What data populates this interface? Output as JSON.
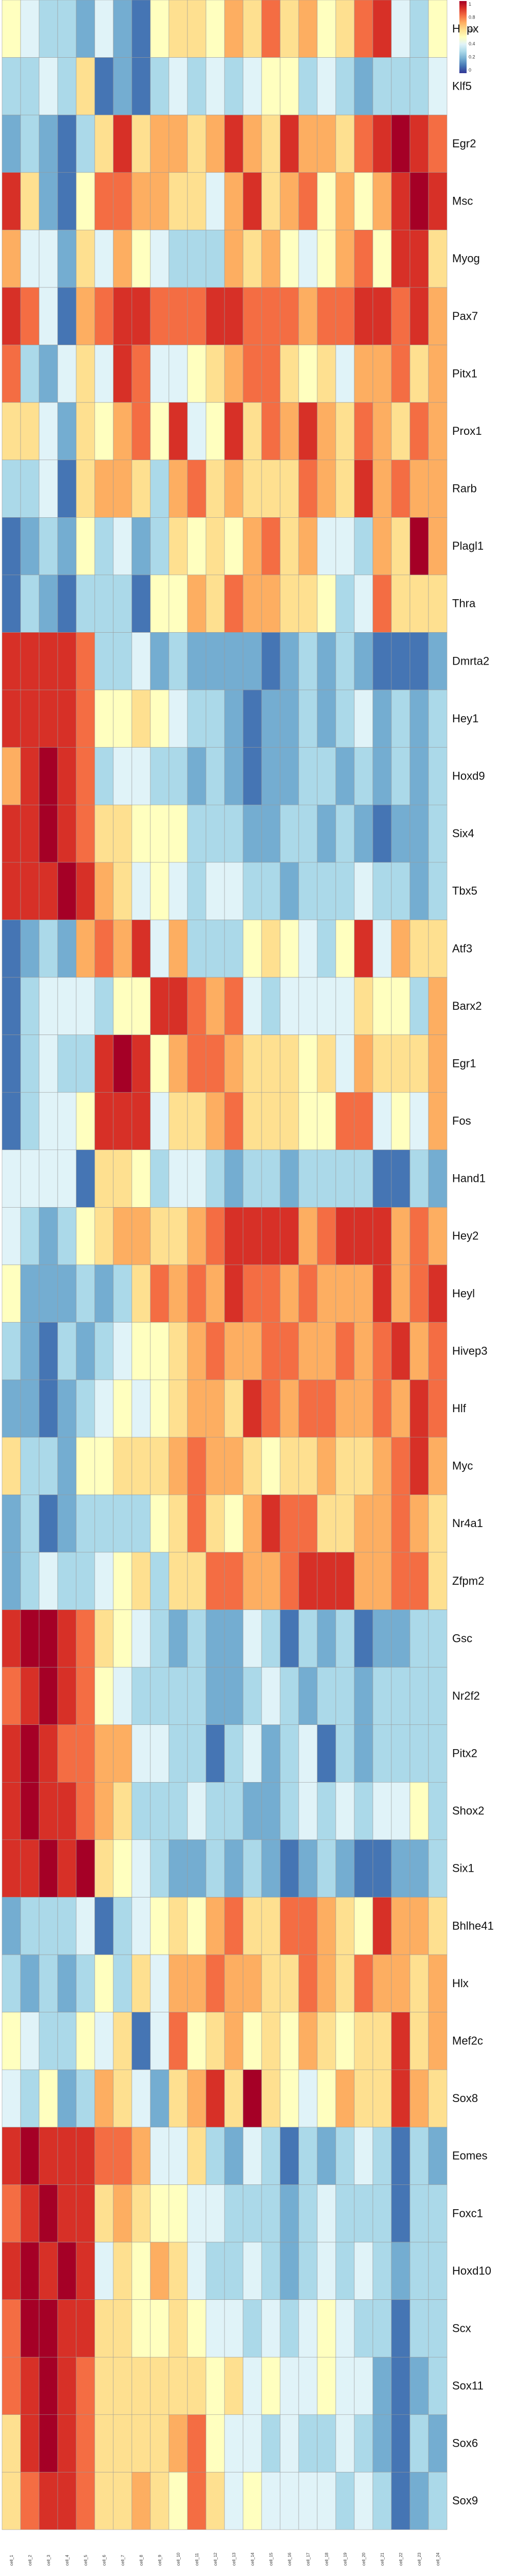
{
  "chart_data": {
    "type": "heatmap",
    "title": "",
    "xlabel": "",
    "ylabel": "",
    "rows": [
      "Hopx",
      "Klf5",
      "Egr2",
      "Msc",
      "Myog",
      "Pax7",
      "Pitx1",
      "Prox1",
      "Rarb",
      "Plagl1",
      "Thra",
      "Dmrta2",
      "Hey1",
      "Hoxd9",
      "Six4",
      "Tbx5",
      "Atf3",
      "Barx2",
      "Egr1",
      "Fos",
      "Hand1",
      "Hey2",
      "Heyl",
      "Hivep3",
      "Hlf",
      "Myc",
      "Nr4a1",
      "Zfpm2",
      "Gsc",
      "Nr2f2",
      "Pitx2",
      "Shox2",
      "Six1",
      "Bhlhe41",
      "Hlx",
      "Mef2c",
      "Sox8",
      "Eomes",
      "Foxc1",
      "Hoxd10",
      "Scx",
      "Sox11",
      "Sox6",
      "Sox9"
    ],
    "columns": [
      "c1",
      "c2",
      "c3",
      "c4",
      "c5",
      "c6",
      "c7",
      "c8",
      "c9",
      "c10",
      "c11",
      "c12",
      "c13",
      "c14",
      "c15",
      "c16",
      "c17",
      "c18",
      "c19",
      "c20",
      "c21",
      "c22",
      "c23",
      "c24"
    ],
    "column_label_text": "cell",
    "legend": {
      "ticks": [
        "1",
        "0.8",
        "0.6",
        "0.4",
        "0.2",
        "0"
      ],
      "colors": [
        "#a50026",
        "#d73027",
        "#f46d43",
        "#fdae61",
        "#fee090",
        "#ffffbf",
        "#e0f3f8",
        "#abd9e9",
        "#74add1",
        "#4575b4",
        "#313695"
      ]
    },
    "values": [
      [
        0.5,
        0.4,
        0.3,
        0.3,
        0.2,
        0.4,
        0.2,
        0.1,
        0.5,
        0.6,
        0.6,
        0.5,
        0.7,
        0.6,
        0.8,
        0.6,
        0.7,
        0.5,
        0.6,
        0.8,
        0.9,
        0.4,
        0.3,
        0.5
      ],
      [
        0.3,
        0.3,
        0.4,
        0.3,
        0.6,
        0.1,
        0.2,
        0.1,
        0.3,
        0.4,
        0.3,
        0.4,
        0.3,
        0.4,
        0.5,
        0.5,
        0.3,
        0.4,
        0.3,
        0.2,
        0.3,
        0.3,
        0.3,
        0.4
      ],
      [
        0.2,
        0.3,
        0.2,
        0.1,
        0.3,
        0.6,
        0.9,
        0.6,
        0.7,
        0.7,
        0.6,
        0.7,
        0.9,
        0.7,
        0.6,
        0.9,
        0.7,
        0.7,
        0.6,
        0.8,
        0.9,
        1.0,
        0.9,
        0.8
      ],
      [
        0.9,
        0.6,
        0.2,
        0.1,
        0.5,
        0.8,
        0.8,
        0.7,
        0.7,
        0.6,
        0.6,
        0.4,
        0.7,
        0.9,
        0.6,
        0.7,
        0.8,
        0.5,
        0.7,
        0.5,
        0.7,
        0.9,
        1.0,
        0.9
      ],
      [
        0.7,
        0.4,
        0.4,
        0.2,
        0.6,
        0.4,
        0.7,
        0.5,
        0.4,
        0.3,
        0.3,
        0.3,
        0.7,
        0.6,
        0.7,
        0.5,
        0.4,
        0.5,
        0.7,
        0.8,
        0.5,
        0.9,
        0.9,
        0.6
      ],
      [
        0.9,
        0.8,
        0.4,
        0.1,
        0.7,
        0.8,
        0.9,
        0.9,
        0.8,
        0.8,
        0.8,
        0.9,
        0.9,
        0.8,
        0.8,
        0.8,
        0.7,
        0.8,
        0.8,
        0.9,
        0.9,
        0.8,
        0.9,
        0.7
      ],
      [
        0.8,
        0.3,
        0.2,
        0.4,
        0.6,
        0.4,
        0.9,
        0.8,
        0.4,
        0.4,
        0.5,
        0.6,
        0.7,
        0.8,
        0.8,
        0.6,
        0.5,
        0.6,
        0.4,
        0.7,
        0.7,
        0.8,
        0.6,
        0.7
      ],
      [
        0.6,
        0.6,
        0.4,
        0.2,
        0.6,
        0.5,
        0.7,
        0.8,
        0.5,
        0.9,
        0.4,
        0.5,
        0.9,
        0.6,
        0.8,
        0.7,
        0.9,
        0.7,
        0.6,
        0.8,
        0.7,
        0.6,
        0.8,
        0.7
      ],
      [
        0.3,
        0.3,
        0.4,
        0.1,
        0.6,
        0.7,
        0.7,
        0.6,
        0.3,
        0.7,
        0.8,
        0.6,
        0.7,
        0.6,
        0.6,
        0.6,
        0.8,
        0.7,
        0.6,
        0.9,
        0.7,
        0.8,
        0.7,
        0.7
      ],
      [
        0.1,
        0.2,
        0.3,
        0.2,
        0.5,
        0.3,
        0.4,
        0.2,
        0.3,
        0.6,
        0.5,
        0.6,
        0.5,
        0.7,
        0.8,
        0.6,
        0.7,
        0.4,
        0.4,
        0.3,
        0.7,
        0.6,
        1.0,
        0.7
      ],
      [
        0.1,
        0.3,
        0.2,
        0.1,
        0.3,
        0.3,
        0.3,
        0.1,
        0.5,
        0.5,
        0.7,
        0.6,
        0.8,
        0.7,
        0.7,
        0.6,
        0.6,
        0.5,
        0.3,
        0.4,
        0.8,
        0.6,
        0.6,
        0.6
      ],
      [
        0.9,
        0.9,
        0.9,
        0.9,
        0.8,
        0.3,
        0.3,
        0.4,
        0.2,
        0.3,
        0.2,
        0.2,
        0.2,
        0.2,
        0.1,
        0.2,
        0.3,
        0.2,
        0.3,
        0.2,
        0.1,
        0.1,
        0.1,
        0.2
      ],
      [
        0.9,
        0.9,
        0.9,
        0.9,
        0.8,
        0.5,
        0.5,
        0.6,
        0.5,
        0.4,
        0.3,
        0.3,
        0.2,
        0.1,
        0.2,
        0.2,
        0.3,
        0.2,
        0.3,
        0.4,
        0.2,
        0.3,
        0.2,
        0.3
      ],
      [
        0.7,
        0.9,
        1.0,
        0.9,
        0.8,
        0.3,
        0.4,
        0.4,
        0.3,
        0.3,
        0.2,
        0.3,
        0.2,
        0.1,
        0.2,
        0.2,
        0.3,
        0.3,
        0.2,
        0.3,
        0.2,
        0.3,
        0.2,
        0.3
      ],
      [
        0.9,
        0.9,
        1.0,
        0.9,
        0.8,
        0.6,
        0.6,
        0.5,
        0.5,
        0.5,
        0.3,
        0.3,
        0.3,
        0.2,
        0.2,
        0.3,
        0.3,
        0.2,
        0.3,
        0.2,
        0.1,
        0.2,
        0.2,
        0.3
      ],
      [
        0.9,
        0.9,
        0.9,
        1.0,
        0.9,
        0.7,
        0.6,
        0.4,
        0.5,
        0.4,
        0.3,
        0.4,
        0.4,
        0.3,
        0.3,
        0.2,
        0.3,
        0.3,
        0.3,
        0.4,
        0.3,
        0.3,
        0.2,
        0.3
      ],
      [
        0.1,
        0.2,
        0.3,
        0.2,
        0.7,
        0.8,
        0.7,
        0.9,
        0.4,
        0.7,
        0.3,
        0.3,
        0.3,
        0.5,
        0.6,
        0.5,
        0.4,
        0.3,
        0.5,
        0.9,
        0.4,
        0.7,
        0.6,
        0.6
      ],
      [
        0.1,
        0.3,
        0.4,
        0.4,
        0.4,
        0.3,
        0.5,
        0.5,
        0.9,
        0.9,
        0.8,
        0.7,
        0.8,
        0.4,
        0.3,
        0.4,
        0.4,
        0.4,
        0.4,
        0.6,
        0.5,
        0.5,
        0.3,
        0.7
      ],
      [
        0.1,
        0.3,
        0.4,
        0.3,
        0.3,
        0.9,
        1.0,
        0.9,
        0.5,
        0.7,
        0.8,
        0.8,
        0.7,
        0.6,
        0.6,
        0.6,
        0.5,
        0.6,
        0.4,
        0.7,
        0.6,
        0.6,
        0.6,
        0.7
      ],
      [
        0.1,
        0.3,
        0.4,
        0.4,
        0.5,
        0.9,
        0.9,
        0.9,
        0.4,
        0.6,
        0.6,
        0.7,
        0.8,
        0.6,
        0.6,
        0.6,
        0.5,
        0.5,
        0.8,
        0.8,
        0.4,
        0.5,
        0.4,
        0.7
      ],
      [
        0.4,
        0.4,
        0.4,
        0.4,
        0.1,
        0.6,
        0.6,
        0.5,
        0.3,
        0.4,
        0.4,
        0.3,
        0.2,
        0.3,
        0.3,
        0.2,
        0.3,
        0.3,
        0.3,
        0.3,
        0.1,
        0.1,
        0.3,
        0.2
      ],
      [
        0.4,
        0.3,
        0.2,
        0.3,
        0.5,
        0.6,
        0.7,
        0.7,
        0.6,
        0.6,
        0.7,
        0.8,
        0.9,
        0.9,
        0.9,
        0.9,
        0.7,
        0.8,
        0.9,
        0.9,
        0.9,
        0.7,
        0.8,
        0.7
      ],
      [
        0.5,
        0.2,
        0.2,
        0.2,
        0.3,
        0.2,
        0.3,
        0.6,
        0.8,
        0.7,
        0.8,
        0.7,
        0.9,
        0.8,
        0.8,
        0.7,
        0.8,
        0.7,
        0.7,
        0.7,
        0.9,
        0.7,
        0.8,
        0.9
      ],
      [
        0.3,
        0.2,
        0.1,
        0.3,
        0.2,
        0.3,
        0.4,
        0.5,
        0.5,
        0.6,
        0.7,
        0.8,
        0.7,
        0.7,
        0.8,
        0.8,
        0.7,
        0.7,
        0.8,
        0.7,
        0.8,
        0.9,
        0.7,
        0.8
      ],
      [
        0.2,
        0.2,
        0.1,
        0.2,
        0.3,
        0.4,
        0.5,
        0.4,
        0.5,
        0.6,
        0.7,
        0.7,
        0.6,
        0.9,
        0.8,
        0.7,
        0.8,
        0.8,
        0.7,
        0.7,
        0.8,
        0.7,
        0.9,
        0.8
      ],
      [
        0.6,
        0.3,
        0.3,
        0.2,
        0.5,
        0.5,
        0.6,
        0.6,
        0.6,
        0.7,
        0.8,
        0.7,
        0.7,
        0.6,
        0.5,
        0.6,
        0.6,
        0.7,
        0.6,
        0.6,
        0.7,
        0.8,
        0.9,
        0.7
      ],
      [
        0.2,
        0.3,
        0.1,
        0.2,
        0.3,
        0.3,
        0.3,
        0.3,
        0.5,
        0.6,
        0.8,
        0.6,
        0.5,
        0.7,
        0.9,
        0.8,
        0.8,
        0.6,
        0.6,
        0.7,
        0.7,
        0.8,
        0.7,
        0.6
      ],
      [
        0.2,
        0.3,
        0.4,
        0.3,
        0.3,
        0.4,
        0.5,
        0.6,
        0.3,
        0.6,
        0.6,
        0.8,
        0.8,
        0.7,
        0.7,
        0.8,
        0.9,
        0.9,
        0.9,
        0.7,
        0.7,
        0.8,
        0.8,
        0.6
      ],
      [
        0.9,
        1.0,
        1.0,
        0.9,
        0.8,
        0.6,
        0.5,
        0.4,
        0.3,
        0.2,
        0.3,
        0.2,
        0.2,
        0.4,
        0.3,
        0.1,
        0.3,
        0.2,
        0.3,
        0.1,
        0.2,
        0.2,
        0.3,
        0.3
      ],
      [
        0.8,
        0.9,
        1.0,
        0.9,
        0.8,
        0.5,
        0.4,
        0.3,
        0.3,
        0.3,
        0.3,
        0.2,
        0.2,
        0.3,
        0.4,
        0.3,
        0.2,
        0.3,
        0.3,
        0.2,
        0.3,
        0.3,
        0.3,
        0.3
      ],
      [
        0.9,
        1.0,
        0.9,
        0.8,
        0.8,
        0.7,
        0.7,
        0.4,
        0.4,
        0.3,
        0.3,
        0.1,
        0.3,
        0.4,
        0.2,
        0.3,
        0.4,
        0.1,
        0.3,
        0.2,
        0.3,
        0.3,
        0.3,
        0.3
      ],
      [
        0.9,
        1.0,
        0.9,
        0.9,
        0.8,
        0.7,
        0.6,
        0.3,
        0.3,
        0.3,
        0.4,
        0.3,
        0.3,
        0.2,
        0.2,
        0.3,
        0.4,
        0.3,
        0.4,
        0.3,
        0.4,
        0.4,
        0.5,
        0.3
      ],
      [
        0.9,
        0.9,
        1.0,
        0.9,
        1.0,
        0.6,
        0.5,
        0.4,
        0.3,
        0.2,
        0.2,
        0.3,
        0.2,
        0.3,
        0.2,
        0.1,
        0.2,
        0.3,
        0.2,
        0.1,
        0.1,
        0.2,
        0.2,
        0.3
      ],
      [
        0.2,
        0.3,
        0.3,
        0.3,
        0.4,
        0.1,
        0.3,
        0.4,
        0.5,
        0.6,
        0.5,
        0.7,
        0.8,
        0.6,
        0.6,
        0.8,
        0.8,
        0.7,
        0.6,
        0.5,
        0.9,
        0.7,
        0.7,
        0.6
      ],
      [
        0.3,
        0.2,
        0.3,
        0.2,
        0.3,
        0.5,
        0.3,
        0.6,
        0.4,
        0.7,
        0.7,
        0.8,
        0.7,
        0.7,
        0.6,
        0.6,
        0.8,
        0.7,
        0.6,
        0.8,
        0.7,
        0.7,
        0.6,
        0.7
      ],
      [
        0.5,
        0.4,
        0.3,
        0.3,
        0.5,
        0.4,
        0.6,
        0.1,
        0.4,
        0.8,
        0.5,
        0.6,
        0.7,
        0.5,
        0.6,
        0.5,
        0.7,
        0.6,
        0.5,
        0.6,
        0.6,
        0.9,
        0.6,
        0.7
      ],
      [
        0.4,
        0.3,
        0.5,
        0.2,
        0.3,
        0.7,
        0.6,
        0.4,
        0.2,
        0.6,
        0.7,
        0.9,
        0.6,
        1.0,
        0.6,
        0.5,
        0.4,
        0.5,
        0.7,
        0.6,
        0.6,
        0.9,
        0.7,
        0.6
      ],
      [
        0.9,
        1.0,
        0.9,
        0.9,
        0.9,
        0.8,
        0.8,
        0.7,
        0.4,
        0.4,
        0.6,
        0.3,
        0.2,
        0.4,
        0.3,
        0.1,
        0.3,
        0.2,
        0.3,
        0.4,
        0.3,
        0.1,
        0.3,
        0.2
      ],
      [
        0.8,
        0.9,
        1.0,
        0.9,
        0.9,
        0.6,
        0.7,
        0.6,
        0.5,
        0.5,
        0.4,
        0.4,
        0.3,
        0.3,
        0.3,
        0.2,
        0.3,
        0.4,
        0.3,
        0.3,
        0.3,
        0.1,
        0.3,
        0.3
      ],
      [
        0.9,
        1.0,
        0.9,
        1.0,
        0.9,
        0.4,
        0.6,
        0.5,
        0.7,
        0.6,
        0.4,
        0.3,
        0.3,
        0.4,
        0.3,
        0.2,
        0.3,
        0.4,
        0.3,
        0.4,
        0.3,
        0.2,
        0.3,
        0.3
      ],
      [
        0.8,
        1.0,
        1.0,
        0.9,
        0.9,
        0.6,
        0.6,
        0.5,
        0.5,
        0.6,
        0.5,
        0.4,
        0.4,
        0.3,
        0.4,
        0.3,
        0.4,
        0.5,
        0.4,
        0.3,
        0.3,
        0.1,
        0.3,
        0.3
      ],
      [
        0.8,
        0.9,
        1.0,
        0.9,
        0.8,
        0.6,
        0.6,
        0.6,
        0.6,
        0.6,
        0.6,
        0.5,
        0.6,
        0.4,
        0.5,
        0.4,
        0.4,
        0.5,
        0.4,
        0.4,
        0.2,
        0.1,
        0.2,
        0.3
      ],
      [
        0.6,
        0.9,
        1.0,
        0.9,
        0.8,
        0.6,
        0.6,
        0.6,
        0.6,
        0.7,
        0.8,
        0.5,
        0.4,
        0.4,
        0.3,
        0.4,
        0.3,
        0.3,
        0.4,
        0.3,
        0.2,
        0.1,
        0.3,
        0.2
      ],
      [
        0.6,
        0.8,
        0.9,
        0.9,
        0.8,
        0.6,
        0.6,
        0.7,
        0.6,
        0.5,
        0.8,
        0.6,
        0.4,
        0.5,
        0.4,
        0.4,
        0.4,
        0.4,
        0.3,
        0.4,
        0.3,
        0.1,
        0.2,
        0.3
      ]
    ]
  }
}
